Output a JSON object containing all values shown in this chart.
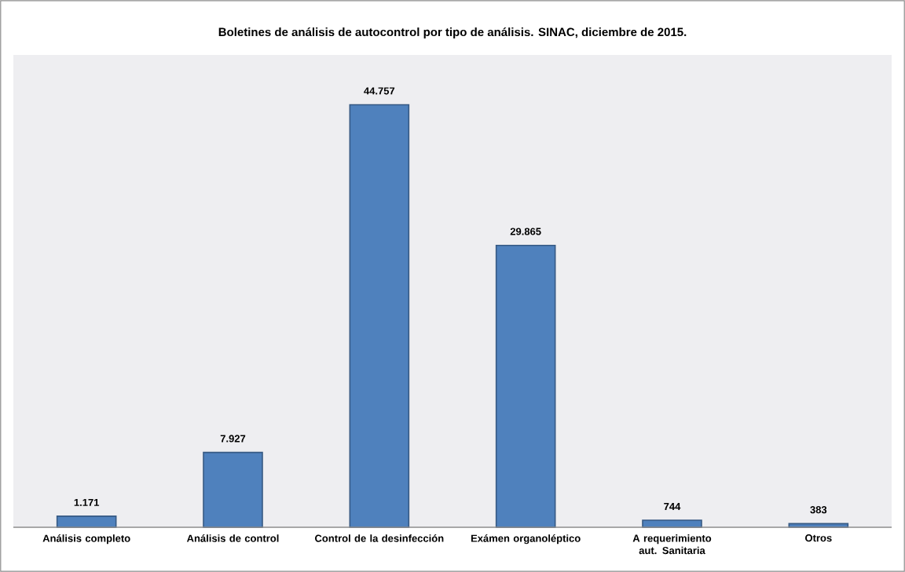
{
  "chart_data": {
    "type": "bar",
    "title": "Boletines de análisis de autocontrol por tipo de análisis. SINAC, diciembre de 2015.",
    "categories": [
      "Análisis completo",
      "Análisis de control",
      "Control de la desinfección",
      "Exámen organoléptico",
      "A requerimiento aut. Sanitaria",
      "Otros"
    ],
    "values": [
      1171,
      7927,
      44757,
      29865,
      744,
      383
    ],
    "value_labels": [
      "1.171",
      "7.927",
      "44.757",
      "29.865",
      "744",
      "383"
    ],
    "color": "#4f81bd"
  }
}
